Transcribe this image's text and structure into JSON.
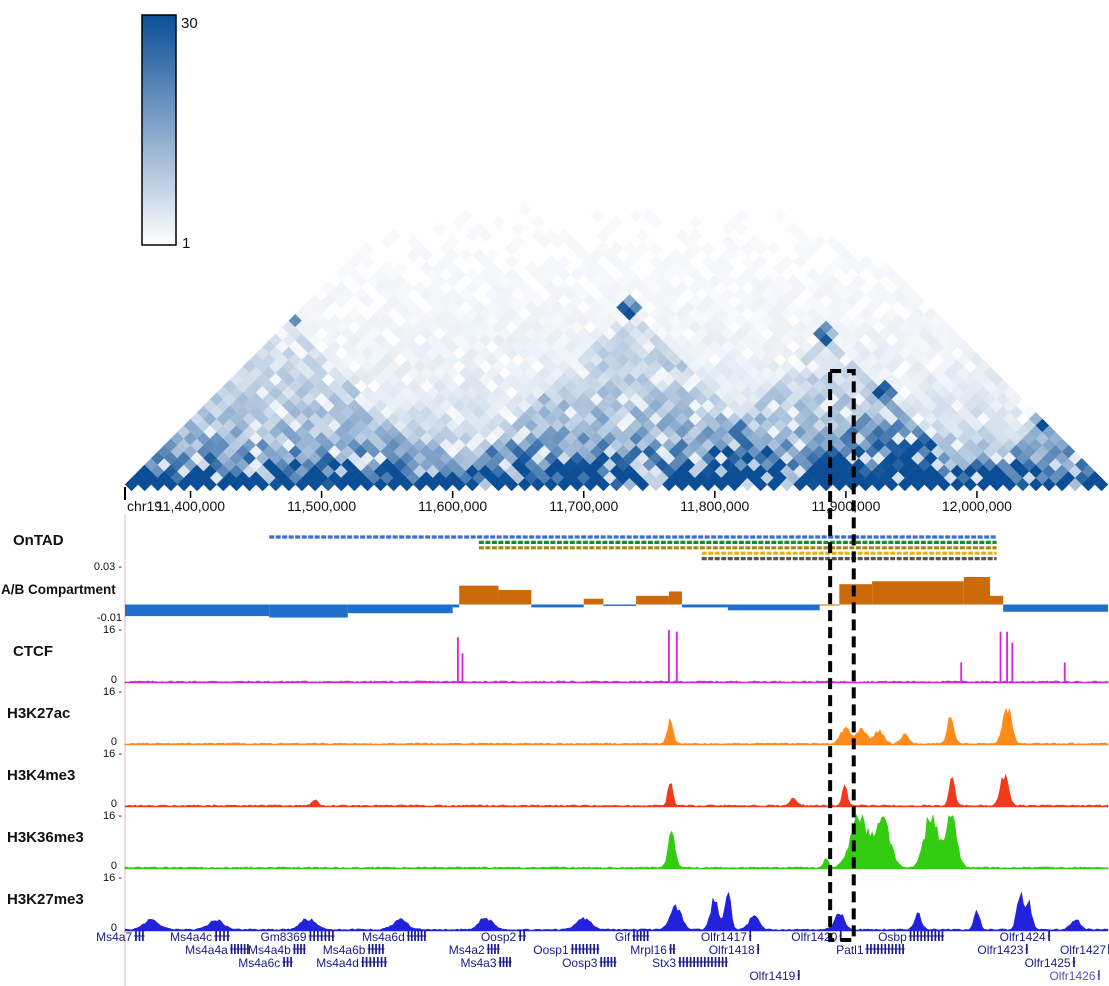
{
  "chart_data": {
    "type": "heatmap",
    "chromosome": "chr19",
    "region": [
      11350000,
      12100000
    ],
    "x_ticks": [
      {
        "pos": 11400000,
        "label": "11,400,000"
      },
      {
        "pos": 11500000,
        "label": "11,500,000"
      },
      {
        "pos": 11600000,
        "label": "11,600,000"
      },
      {
        "pos": 11700000,
        "label": "11,700,000"
      },
      {
        "pos": 11800000,
        "label": "11,800,000"
      },
      {
        "pos": 11900000,
        "label": "11,900,000"
      },
      {
        "pos": 12000000,
        "label": "12,000,000"
      }
    ],
    "hic": {
      "bin_size": 10000,
      "colorscale": {
        "min": 1,
        "max": 30,
        "min_label": "1",
        "max_label": "30",
        "low_color": "#ffffff",
        "high_color": "#0b4e96"
      },
      "domains": [
        {
          "start": 11350000,
          "end": 11600000,
          "strength": 0.55
        },
        {
          "start": 11600000,
          "end": 11870000,
          "strength": 0.75
        },
        {
          "start": 11770000,
          "end": 12000000,
          "strength": 0.6
        },
        {
          "start": 11860000,
          "end": 12000000,
          "strength": 0.7
        },
        {
          "start": 12000000,
          "end": 12100000,
          "strength": 0.5
        }
      ]
    },
    "ontad": {
      "label": "OnTAD",
      "domains": [
        {
          "start": 11460000,
          "end": 12015000,
          "color": "#3b6fc9"
        },
        {
          "start": 11620000,
          "end": 12015000,
          "color": "#1a8a3a"
        },
        {
          "start": 11620000,
          "end": 12015000,
          "color": "#a08a10"
        },
        {
          "start": 11790000,
          "end": 12015000,
          "color": "#e3b418"
        },
        {
          "start": 11790000,
          "end": 12015000,
          "color": "#555555"
        }
      ]
    },
    "compartment": {
      "label": "A/B Compartment",
      "ymin": -0.01,
      "ymax": 0.03,
      "ymin_label": "-0.01",
      "ymax_label": "0.03 -",
      "pos_color": "#cc6a0a",
      "neg_color": "#1e6fcc",
      "segments": [
        {
          "start": 11350000,
          "end": 11460000,
          "value": -0.008
        },
        {
          "start": 11460000,
          "end": 11520000,
          "value": -0.009
        },
        {
          "start": 11520000,
          "end": 11600000,
          "value": -0.006
        },
        {
          "start": 11600000,
          "end": 11605000,
          "value": -0.002
        },
        {
          "start": 11605000,
          "end": 11635000,
          "value": 0.013
        },
        {
          "start": 11635000,
          "end": 11660000,
          "value": 0.01
        },
        {
          "start": 11660000,
          "end": 11700000,
          "value": -0.002
        },
        {
          "start": 11700000,
          "end": 11715000,
          "value": 0.004
        },
        {
          "start": 11715000,
          "end": 11740000,
          "value": -0.001
        },
        {
          "start": 11740000,
          "end": 11765000,
          "value": 0.006
        },
        {
          "start": 11765000,
          "end": 11775000,
          "value": 0.009
        },
        {
          "start": 11775000,
          "end": 11810000,
          "value": -0.002
        },
        {
          "start": 11810000,
          "end": 11880000,
          "value": -0.004
        },
        {
          "start": 11880000,
          "end": 11895000,
          "value": 0.0
        },
        {
          "start": 11895000,
          "end": 11920000,
          "value": 0.014
        },
        {
          "start": 11920000,
          "end": 11990000,
          "value": 0.016
        },
        {
          "start": 11990000,
          "end": 12010000,
          "value": 0.019
        },
        {
          "start": 12010000,
          "end": 12020000,
          "value": 0.006
        },
        {
          "start": 12020000,
          "end": 12100000,
          "value": -0.005
        }
      ]
    },
    "tracks": [
      {
        "name": "CTCF",
        "color": "#dd22dd",
        "ymin": 0,
        "ymax": 16,
        "ymin_label": "0",
        "ymax_label": "16 -",
        "peaks": [
          {
            "pos": 11604000,
            "height": 0.85,
            "width": 900,
            "spike": true
          },
          {
            "pos": 11607500,
            "height": 0.55,
            "width": 900,
            "spike": true
          },
          {
            "pos": 11765000,
            "height": 0.98,
            "width": 900,
            "spike": true
          },
          {
            "pos": 11771000,
            "height": 0.95,
            "width": 900,
            "spike": true
          },
          {
            "pos": 11988000,
            "height": 0.38,
            "width": 900,
            "spike": true
          },
          {
            "pos": 12018000,
            "height": 0.95,
            "width": 900,
            "spike": true
          },
          {
            "pos": 12023000,
            "height": 0.95,
            "width": 900,
            "spike": true
          },
          {
            "pos": 12027000,
            "height": 0.75,
            "width": 900,
            "spike": true
          },
          {
            "pos": 12067000,
            "height": 0.38,
            "width": 900,
            "spike": true
          }
        ]
      },
      {
        "name": "H3K27ac",
        "color": "#ff8c1a",
        "ymin": 0,
        "ymax": 16,
        "ymin_label": "0",
        "ymax_label": "16 -",
        "peaks": [
          {
            "pos": 11766000,
            "height": 0.45,
            "width": 3000
          },
          {
            "pos": 11900000,
            "height": 0.35,
            "width": 5000
          },
          {
            "pos": 11912000,
            "height": 0.3,
            "width": 5000
          },
          {
            "pos": 11925000,
            "height": 0.25,
            "width": 5000
          },
          {
            "pos": 11945000,
            "height": 0.18,
            "width": 4000
          },
          {
            "pos": 11980000,
            "height": 0.5,
            "width": 3500
          },
          {
            "pos": 12023000,
            "height": 0.7,
            "width": 4500
          }
        ]
      },
      {
        "name": "H3K4me3",
        "color": "#f03a1a",
        "ymin": 0,
        "ymax": 16,
        "ymin_label": "0",
        "ymax_label": "16 -",
        "peaks": [
          {
            "pos": 11495000,
            "height": 0.12,
            "width": 3000
          },
          {
            "pos": 11766000,
            "height": 0.45,
            "width": 2500
          },
          {
            "pos": 11860000,
            "height": 0.12,
            "width": 4000
          },
          {
            "pos": 11899000,
            "height": 0.4,
            "width": 2500
          },
          {
            "pos": 11981000,
            "height": 0.52,
            "width": 3000
          },
          {
            "pos": 12021000,
            "height": 0.55,
            "width": 4500
          }
        ]
      },
      {
        "name": "H3K36me3",
        "color": "#33cc11",
        "ymin": 0,
        "ymax": 16,
        "ymin_label": "0",
        "ymax_label": "16 -",
        "peaks": [
          {
            "pos": 11767000,
            "height": 0.75,
            "width": 3500
          },
          {
            "pos": 11885000,
            "height": 0.18,
            "width": 2500
          },
          {
            "pos": 11910000,
            "height": 0.95,
            "width": 9000
          },
          {
            "pos": 11928000,
            "height": 0.85,
            "width": 8000
          },
          {
            "pos": 11965000,
            "height": 1.0,
            "width": 7000
          },
          {
            "pos": 11980000,
            "height": 0.95,
            "width": 6000
          }
        ]
      },
      {
        "name": "H3K27me3",
        "color": "#2222dd",
        "ymin": 0,
        "ymax": 16,
        "ymin_label": "0",
        "ymax_label": "16 -",
        "peaks": [
          {
            "pos": 11370000,
            "height": 0.2,
            "width": 8000
          },
          {
            "pos": 11420000,
            "height": 0.18,
            "width": 8000
          },
          {
            "pos": 11490000,
            "height": 0.2,
            "width": 8000
          },
          {
            "pos": 11560000,
            "height": 0.18,
            "width": 8000
          },
          {
            "pos": 11625000,
            "height": 0.22,
            "width": 7000
          },
          {
            "pos": 11700000,
            "height": 0.2,
            "width": 8000
          },
          {
            "pos": 11770000,
            "height": 0.45,
            "width": 6000
          },
          {
            "pos": 11800000,
            "height": 0.55,
            "width": 4500
          },
          {
            "pos": 11810000,
            "height": 0.8,
            "width": 3000
          },
          {
            "pos": 11830000,
            "height": 0.3,
            "width": 5000
          },
          {
            "pos": 11895000,
            "height": 0.32,
            "width": 5000
          },
          {
            "pos": 11955000,
            "height": 0.3,
            "width": 3500
          },
          {
            "pos": 12000000,
            "height": 0.35,
            "width": 3000
          },
          {
            "pos": 12033000,
            "height": 0.72,
            "width": 3500
          },
          {
            "pos": 12040000,
            "height": 0.45,
            "width": 3000
          },
          {
            "pos": 12075000,
            "height": 0.18,
            "width": 5000
          }
        ]
      }
    ],
    "genes": [
      {
        "name": "Ms4a7",
        "start": 11357000,
        "end": 11365000,
        "row": 0,
        "label_side": "left"
      },
      {
        "name": "Ms4a4c",
        "start": 11418000,
        "end": 11430000,
        "row": 0,
        "label_side": "left"
      },
      {
        "name": "Gm8369",
        "start": 11490000,
        "end": 11510000,
        "row": 0,
        "label_side": "left"
      },
      {
        "name": "Ms4a6d",
        "start": 11565000,
        "end": 11580000,
        "row": 0,
        "label_side": "left"
      },
      {
        "name": "Oosp2",
        "start": 11650000,
        "end": 11656000,
        "row": 0,
        "label_side": "left"
      },
      {
        "name": "Gif",
        "start": 11737000,
        "end": 11750000,
        "row": 0,
        "label_side": "left"
      },
      {
        "name": "Olfr1417",
        "start": 11826000,
        "end": 11828000,
        "row": 0,
        "label_side": "left"
      },
      {
        "name": "Olfr1420",
        "start": 11895000,
        "end": 11897000,
        "row": 0,
        "label_side": "left"
      },
      {
        "name": "Osbp",
        "start": 11948000,
        "end": 11975000,
        "row": 0,
        "label_side": "left"
      },
      {
        "name": "Olfr1424",
        "start": 12054000,
        "end": 12056000,
        "row": 0,
        "label_side": "left"
      },
      {
        "name": "Ms4a4a",
        "start": 11430000,
        "end": 11445000,
        "row": 1,
        "label_side": "left"
      },
      {
        "name": "Ms4a4b",
        "start": 11478000,
        "end": 11488000,
        "row": 1,
        "label_side": "left"
      },
      {
        "name": "Ms4a6b",
        "start": 11535000,
        "end": 11548000,
        "row": 1,
        "label_side": "left"
      },
      {
        "name": "Ms4a2",
        "start": 11626000,
        "end": 11636000,
        "row": 1,
        "label_side": "left"
      },
      {
        "name": "Oosp1",
        "start": 11690000,
        "end": 11712000,
        "row": 1,
        "label_side": "left"
      },
      {
        "name": "Mrpl16",
        "start": 11765000,
        "end": 11770000,
        "row": 1,
        "label_side": "left"
      },
      {
        "name": "Olfr1418",
        "start": 11832000,
        "end": 11834000,
        "row": 1,
        "label_side": "left"
      },
      {
        "name": "Patl1",
        "start": 11915000,
        "end": 11945000,
        "row": 1,
        "label_side": "left"
      },
      {
        "name": "Olfr1423",
        "start": 12037000,
        "end": 12039000,
        "row": 1,
        "label_side": "left"
      },
      {
        "name": "Olfr1427",
        "start": 12100000,
        "end": 12101000,
        "row": 1,
        "label_side": "left"
      },
      {
        "name": "Ms4a6c",
        "start": 11470000,
        "end": 11478000,
        "row": 2,
        "label_side": "left"
      },
      {
        "name": "Ms4a4d",
        "start": 11530000,
        "end": 11550000,
        "row": 2,
        "label_side": "left"
      },
      {
        "name": "Ms4a3",
        "start": 11635000,
        "end": 11645000,
        "row": 2,
        "label_side": "left"
      },
      {
        "name": "Oosp3",
        "start": 11712000,
        "end": 11725000,
        "row": 2,
        "label_side": "left"
      },
      {
        "name": "Stx3",
        "start": 11772000,
        "end": 11810000,
        "row": 2,
        "label_side": "left"
      },
      {
        "name": "Olfr1425",
        "start": 12073000,
        "end": 12075000,
        "row": 2,
        "label_side": "left"
      },
      {
        "name": "Olfr1419",
        "start": 11863000,
        "end": 11865000,
        "row": 3,
        "label_side": "left"
      },
      {
        "name": "Olfr1426",
        "start": 12092000,
        "end": 12094000,
        "row": 3,
        "label_side": "left",
        "color": "#5555aa"
      }
    ],
    "highlight": {
      "start": 11888000,
      "end": 11906000,
      "style": "dashed"
    }
  }
}
